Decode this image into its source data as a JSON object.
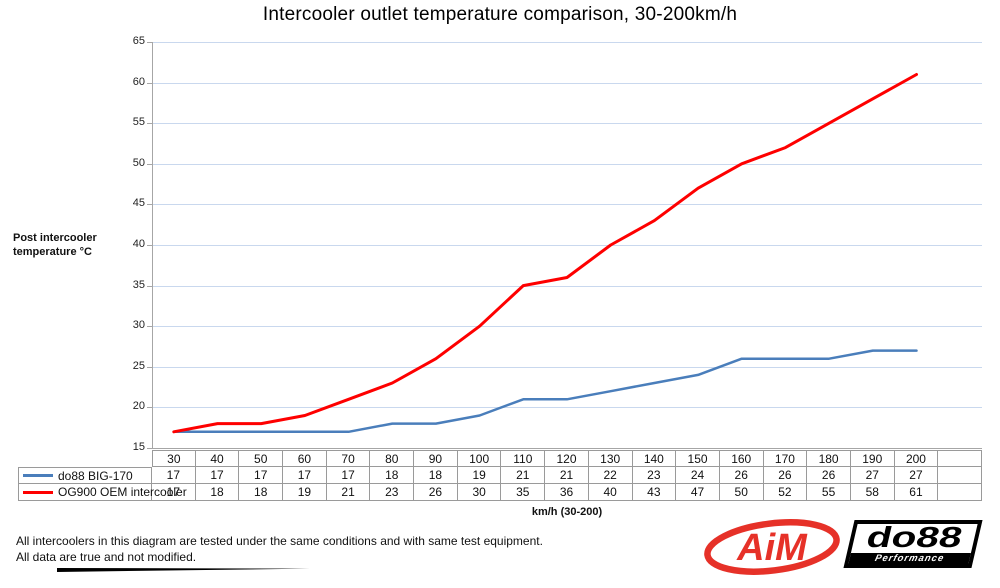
{
  "page": {
    "title": "Intercooler outlet temperature comparison, 30-200km/h",
    "footer_line1": "All intercoolers in this diagram are tested under the same conditions and with same test equipment.",
    "footer_line2": "All data are true and not modified."
  },
  "chart_data": {
    "type": "line",
    "title": "Intercooler outlet temperature comparison, 30-200km/h",
    "categories": [
      30,
      40,
      50,
      60,
      70,
      80,
      90,
      100,
      110,
      120,
      130,
      140,
      150,
      160,
      170,
      180,
      190,
      200
    ],
    "series": [
      {
        "name": "do88 BIG-170",
        "color": "#4A7EBB",
        "values": [
          17,
          17,
          17,
          17,
          17,
          18,
          18,
          19,
          21,
          21,
          22,
          23,
          24,
          26,
          26,
          26,
          27,
          27
        ]
      },
      {
        "name": "OG900 OEM intercooler",
        "color": "#FE0000",
        "values": [
          17,
          18,
          18,
          19,
          21,
          23,
          26,
          30,
          35,
          36,
          40,
          43,
          47,
          50,
          52,
          55,
          58,
          61
        ]
      }
    ],
    "xlabel": "km/h (30-200)",
    "ylabel_line1": "Post intercooler",
    "ylabel_line2": "temperature °C",
    "ylim": [
      15,
      65
    ],
    "y_ticks": [
      65,
      60,
      55,
      50,
      45,
      40,
      35,
      30,
      25,
      20,
      15
    ],
    "grid": true,
    "gridline_color": "#C9D8EE",
    "axis_color": "#A6A6A6",
    "table_border_color": "#9a9a9a",
    "legend_position": "table-left"
  },
  "logos": {
    "aim_text": "AiM",
    "aim_color": "#E63128",
    "do88_text": "do88",
    "do88_sub_text": "Performance"
  }
}
